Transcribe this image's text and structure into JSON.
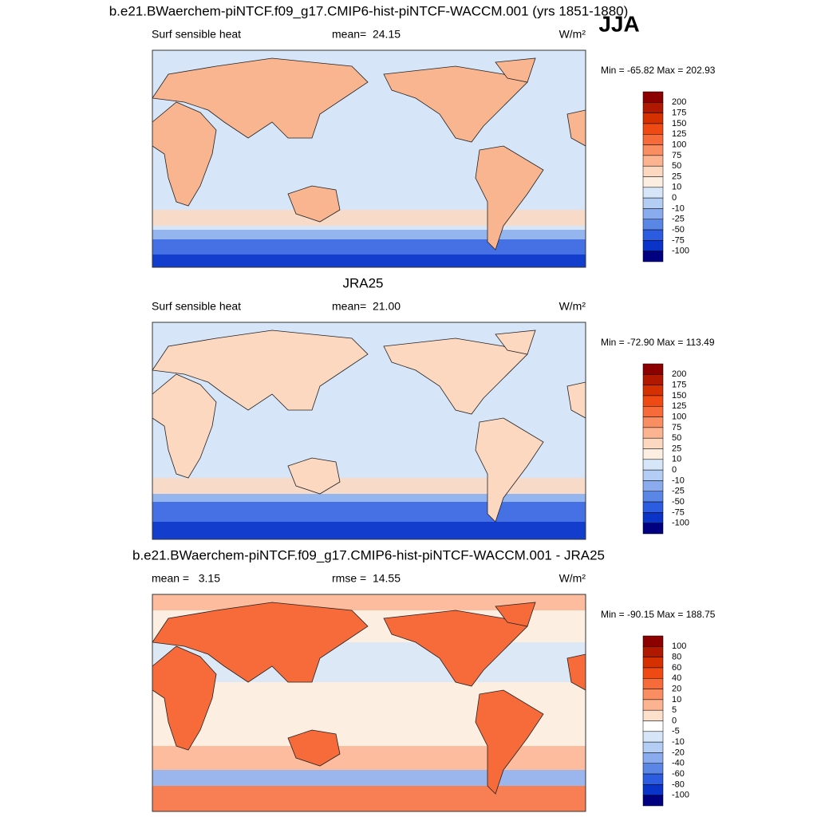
{
  "header": {
    "title": "b.e21.BWaerchem-piNTCF.f09_g17.CMIP6-hist-piNTCF-WACCM.001 (yrs 1851-1880)",
    "season": "JJA"
  },
  "panels": [
    {
      "left_label": "Surf sensible heat",
      "center_label": "mean=  24.15",
      "units": "W/m²",
      "min_max": "Min = -65.82 Max = 202.93",
      "colorbar": {
        "labels": [
          "200",
          "175",
          "150",
          "125",
          "100",
          "75",
          "50",
          "25",
          "10",
          "0",
          "-10",
          "-25",
          "-50",
          "-75",
          "-100"
        ],
        "colors": [
          "#8c0000",
          "#b01800",
          "#d43000",
          "#f04a14",
          "#f76a3a",
          "#f98e62",
          "#fbb390",
          "#fdd8c0",
          "#fdeee2",
          "#d6e6f8",
          "#b4cdf4",
          "#8aabed",
          "#5a86e6",
          "#2c5ce0",
          "#0a34c8",
          "#000080"
        ]
      }
    },
    {
      "title": "JRA25",
      "left_label": "Surf sensible heat",
      "center_label": "mean=  21.00",
      "units": "W/m²",
      "min_max": "Min = -72.90 Max = 113.49",
      "colorbar": {
        "labels": [
          "200",
          "175",
          "150",
          "125",
          "100",
          "75",
          "50",
          "25",
          "10",
          "0",
          "-10",
          "-25",
          "-50",
          "-75",
          "-100"
        ],
        "colors": [
          "#8c0000",
          "#b01800",
          "#d43000",
          "#f04a14",
          "#f76a3a",
          "#f98e62",
          "#fbb390",
          "#fdd8c0",
          "#fdeee2",
          "#d6e6f8",
          "#b4cdf4",
          "#8aabed",
          "#5a86e6",
          "#2c5ce0",
          "#0a34c8",
          "#000080"
        ]
      }
    },
    {
      "title": "b.e21.BWaerchem-piNTCF.f09_g17.CMIP6-hist-piNTCF-WACCM.001 - JRA25",
      "left_label": "mean =   3.15",
      "center_label": "rmse =  14.55",
      "units": "W/m²",
      "min_max": "Min = -90.15 Max = 188.75",
      "colorbar": {
        "labels": [
          "100",
          "80",
          "60",
          "40",
          "20",
          "10",
          "5",
          "0",
          "-5",
          "-10",
          "-20",
          "-40",
          "-60",
          "-80",
          "-100"
        ],
        "colors": [
          "#8c0000",
          "#b01800",
          "#d43000",
          "#f04a14",
          "#f76a3a",
          "#f98e62",
          "#fbb390",
          "#fde0cb",
          "#ffffff",
          "#d6e6f8",
          "#b4cdf4",
          "#8aabed",
          "#5a86e6",
          "#2c5ce0",
          "#0a34c8",
          "#000080"
        ]
      }
    }
  ]
}
